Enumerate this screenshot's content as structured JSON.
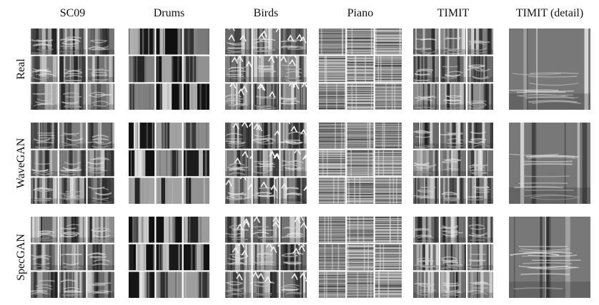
{
  "figure": {
    "columns": [
      "SC09",
      "Drums",
      "Birds",
      "Piano",
      "TIMIT",
      "TIMIT (detail)"
    ],
    "rows": [
      "Real",
      "WaveGAN",
      "SpecGAN"
    ]
  }
}
